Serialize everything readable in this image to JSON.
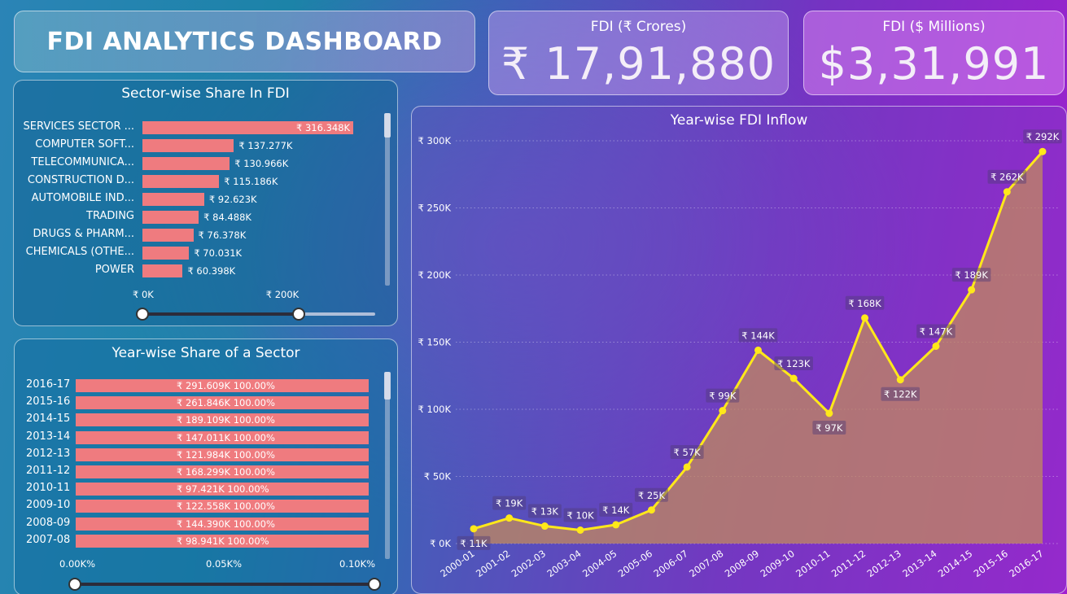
{
  "dashboard": {
    "title": "FDI ANALYTICS DASHBOARD",
    "kpis": [
      {
        "label": "FDI (₹ Crores)",
        "value": "₹ 17,91,880"
      },
      {
        "label": "FDI ($ Millions)",
        "value": "$3,31,991"
      }
    ]
  },
  "chart_data": [
    {
      "type": "bar",
      "orientation": "horizontal",
      "title": "Sector-wise Share In FDI",
      "categories": [
        "SERVICES SECTOR ...",
        "COMPUTER SOFT...",
        "TELECOMMUNICA...",
        "CONSTRUCTION D...",
        "AUTOMOBILE IND...",
        "TRADING",
        "DRUGS & PHARM...",
        "CHEMICALS (OTHE...",
        "POWER"
      ],
      "values": [
        316348,
        137277,
        130966,
        115186,
        92623,
        84488,
        76378,
        70031,
        60398
      ],
      "value_labels": [
        "₹ 316.348K",
        "₹ 137.277K",
        "₹ 130.966K",
        "₹ 115.186K",
        "₹ 92.623K",
        "₹ 84.488K",
        "₹ 76.378K",
        "₹ 70.031K",
        "₹ 60.398K"
      ],
      "xlim": [
        0,
        320000
      ],
      "x_ticks": [
        {
          "value": 0,
          "label": "₹ 0K"
        },
        {
          "value": 200000,
          "label": "₹ 200K"
        }
      ]
    },
    {
      "type": "bar",
      "orientation": "horizontal",
      "title": "Year-wise Share of a Sector",
      "categories": [
        "2016-17",
        "2015-16",
        "2014-15",
        "2013-14",
        "2012-13",
        "2011-12",
        "2010-11",
        "2009-10",
        "2008-09",
        "2007-08"
      ],
      "values": [
        100,
        100,
        100,
        100,
        100,
        100,
        100,
        100,
        100,
        100
      ],
      "value_labels": [
        "₹ 291.609K 100.00%",
        "₹ 261.846K 100.00%",
        "₹ 189.109K 100.00%",
        "₹ 147.011K 100.00%",
        "₹ 121.984K 100.00%",
        "₹ 168.299K 100.00%",
        "₹ 97.421K 100.00%",
        "₹ 122.558K 100.00%",
        "₹ 144.390K 100.00%",
        "₹ 98.941K 100.00%"
      ],
      "xlim": [
        0,
        100
      ],
      "x_ticks": [
        {
          "value": 0,
          "label": "0.00K%"
        },
        {
          "value": 50,
          "label": "0.05K%"
        },
        {
          "value": 100,
          "label": "0.10K%"
        }
      ]
    },
    {
      "type": "area",
      "title": "Year-wise FDI Inflow",
      "categories": [
        "2000-01",
        "2001-02",
        "2002-03",
        "2003-04",
        "2004-05",
        "2005-06",
        "2006-07",
        "2007-08",
        "2008-09",
        "2009-10",
        "2010-11",
        "2011-12",
        "2012-13",
        "2013-14",
        "2014-15",
        "2015-16",
        "2016-17"
      ],
      "values": [
        11000,
        19000,
        13000,
        10000,
        14000,
        25000,
        57000,
        99000,
        144000,
        123000,
        97000,
        168000,
        122000,
        147000,
        189000,
        262000,
        292000
      ],
      "value_labels": [
        "₹ 11K",
        "₹ 19K",
        "₹ 13K",
        "₹ 10K",
        "₹ 14K",
        "₹ 25K",
        "₹ 57K",
        "₹ 99K",
        "₹ 144K",
        "₹ 123K",
        "₹ 97K",
        "₹ 168K",
        "₹ 122K",
        "₹ 147K",
        "₹ 189K",
        "₹ 262K",
        "₹ 292K"
      ],
      "ylim": [
        0,
        300000
      ],
      "y_ticks": [
        {
          "value": 0,
          "label": "₹ 0K"
        },
        {
          "value": 50000,
          "label": "₹ 50K"
        },
        {
          "value": 100000,
          "label": "₹ 100K"
        },
        {
          "value": 150000,
          "label": "₹ 150K"
        },
        {
          "value": 200000,
          "label": "₹ 200K"
        },
        {
          "value": 250000,
          "label": "₹ 250K"
        },
        {
          "value": 300000,
          "label": "₹ 300K"
        }
      ],
      "grid": true,
      "line_color": "#ffe81a",
      "fill_color": "#c28a5e"
    }
  ]
}
